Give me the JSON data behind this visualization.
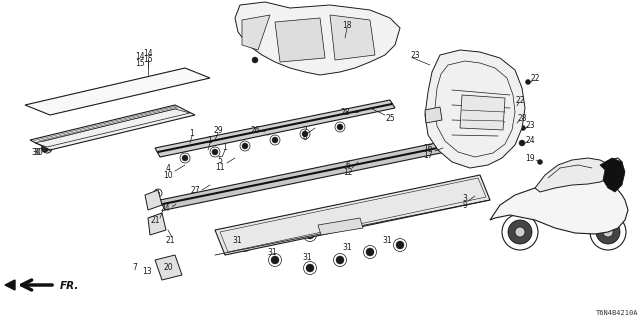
{
  "background_color": "#ffffff",
  "diagram_id": "T6N4B4210A",
  "lc": "#1a1a1a",
  "fs": 5.5,
  "tc": "#1a1a1a"
}
